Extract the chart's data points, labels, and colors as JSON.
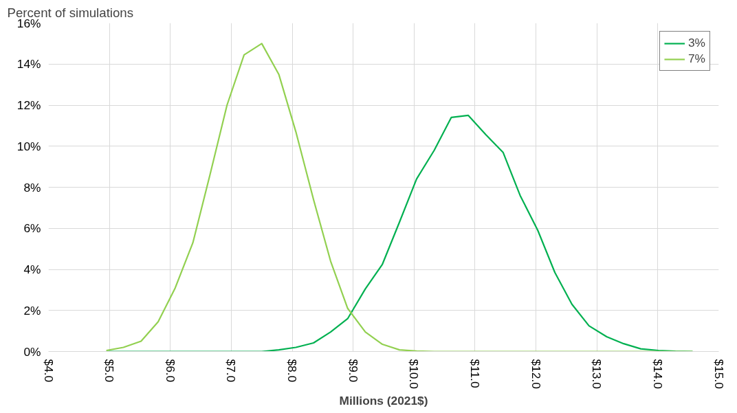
{
  "chart_data": {
    "type": "line",
    "ylabel": "Percent of simulations",
    "xlabel": "Millions (2021$)",
    "x": [
      4.95,
      5.23,
      5.52,
      5.8,
      6.08,
      6.37,
      6.65,
      6.93,
      7.21,
      7.5,
      7.78,
      8.06,
      8.35,
      8.63,
      8.91,
      9.2,
      9.48,
      9.76,
      10.04,
      10.33,
      10.61,
      10.89,
      11.18,
      11.46,
      11.74,
      12.03,
      12.31,
      12.59,
      12.87,
      13.16,
      13.44,
      13.72,
      14.01,
      14.29,
      14.57
    ],
    "series": [
      {
        "name": "3%",
        "color": "#00b050",
        "values": [
          0,
          0,
          0,
          0,
          0,
          0,
          0,
          0,
          0,
          0,
          0.08,
          0.2,
          0.42,
          0.95,
          1.6,
          3.05,
          4.25,
          6.3,
          8.4,
          9.8,
          11.4,
          11.5,
          10.55,
          9.7,
          7.6,
          5.9,
          3.85,
          2.3,
          1.25,
          0.72,
          0.38,
          0.13,
          0.05,
          0.01,
          0
        ]
      },
      {
        "name": "7%",
        "color": "#92d050",
        "values": [
          0.05,
          0.2,
          0.5,
          1.45,
          3.1,
          5.3,
          8.6,
          12.0,
          14.45,
          15.0,
          13.5,
          10.7,
          7.4,
          4.4,
          2.1,
          0.95,
          0.35,
          0.08,
          0.02,
          0,
          0,
          0,
          0,
          0,
          0,
          0,
          0,
          0,
          0,
          0,
          0,
          0,
          0,
          0,
          0
        ]
      }
    ],
    "xlim": [
      4,
      15
    ],
    "xticks": [
      {
        "value": 4,
        "label": "$4.0"
      },
      {
        "value": 5,
        "label": "$5.0"
      },
      {
        "value": 6,
        "label": "$6.0"
      },
      {
        "value": 7,
        "label": "$7.0"
      },
      {
        "value": 8,
        "label": "$8.0"
      },
      {
        "value": 9,
        "label": "$9.0"
      },
      {
        "value": 10,
        "label": "$10.0"
      },
      {
        "value": 11,
        "label": "$11.0"
      },
      {
        "value": 12,
        "label": "$12.0"
      },
      {
        "value": 13,
        "label": "$13.0"
      },
      {
        "value": 14,
        "label": "$14.0"
      },
      {
        "value": 15,
        "label": "$15.0"
      }
    ],
    "ylim": [
      0,
      16
    ],
    "yticks": [
      {
        "value": 0,
        "label": "0%"
      },
      {
        "value": 2,
        "label": "2%"
      },
      {
        "value": 4,
        "label": "4%"
      },
      {
        "value": 6,
        "label": "6%"
      },
      {
        "value": 8,
        "label": "8%"
      },
      {
        "value": 10,
        "label": "10%"
      },
      {
        "value": 12,
        "label": "12%"
      },
      {
        "value": 14,
        "label": "14%"
      },
      {
        "value": 16,
        "label": "16%"
      }
    ],
    "grid": true,
    "legend": "top right",
    "marker": "none",
    "line_style": "solid"
  }
}
